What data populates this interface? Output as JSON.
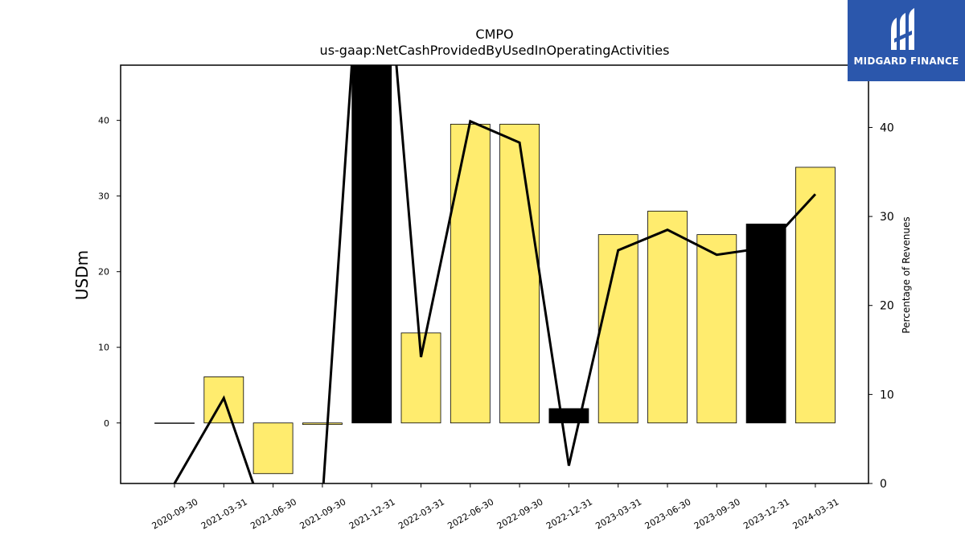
{
  "chart_data": {
    "type": "bar+line",
    "title": "CMPO",
    "subtitle": "us-gaap:NetCashProvidedByUsedInOperatingActivities",
    "ylabel_left": "USDm",
    "ylabel_right": "Percentage of Revenues",
    "categories": [
      "2020-09-30",
      "2021-03-31",
      "2021-06-30",
      "2021-09-30",
      "2021-12-31",
      "2022-03-31",
      "2022-06-30",
      "2022-09-30",
      "2022-12-31",
      "2023-03-31",
      "2023-06-30",
      "2023-09-30",
      "2023-12-31",
      "2024-03-31"
    ],
    "bars": {
      "name": "",
      "values": [
        0.0,
        6.1,
        -6.7,
        -0.2,
        51.0,
        11.9,
        39.5,
        39.5,
        1.9,
        24.9,
        28.0,
        24.9,
        26.3,
        33.8
      ],
      "highlight": [
        false,
        false,
        false,
        false,
        true,
        false,
        false,
        false,
        true,
        false,
        false,
        false,
        true,
        false
      ]
    },
    "line": {
      "name": "",
      "values": [
        0.0,
        9.6,
        -6.5,
        -1.8,
        80.0,
        14.2,
        40.7,
        38.3,
        2.0,
        26.2,
        28.5,
        25.7,
        26.5,
        32.5
      ]
    },
    "ylim_left": [
      -8,
      47.3
    ],
    "yticks_left": [
      0,
      10,
      20,
      30,
      40
    ],
    "ylim_right": [
      0,
      47
    ],
    "yticks_right": [
      0,
      10,
      20,
      30,
      40
    ],
    "colors": {
      "bar": "#ffec6e",
      "bar_highlight": "#000000",
      "bar_edge": "#000000",
      "line": "#000000"
    },
    "grid": false,
    "legend": "none"
  },
  "logo": {
    "text": "MIDGARD FINANCE"
  }
}
